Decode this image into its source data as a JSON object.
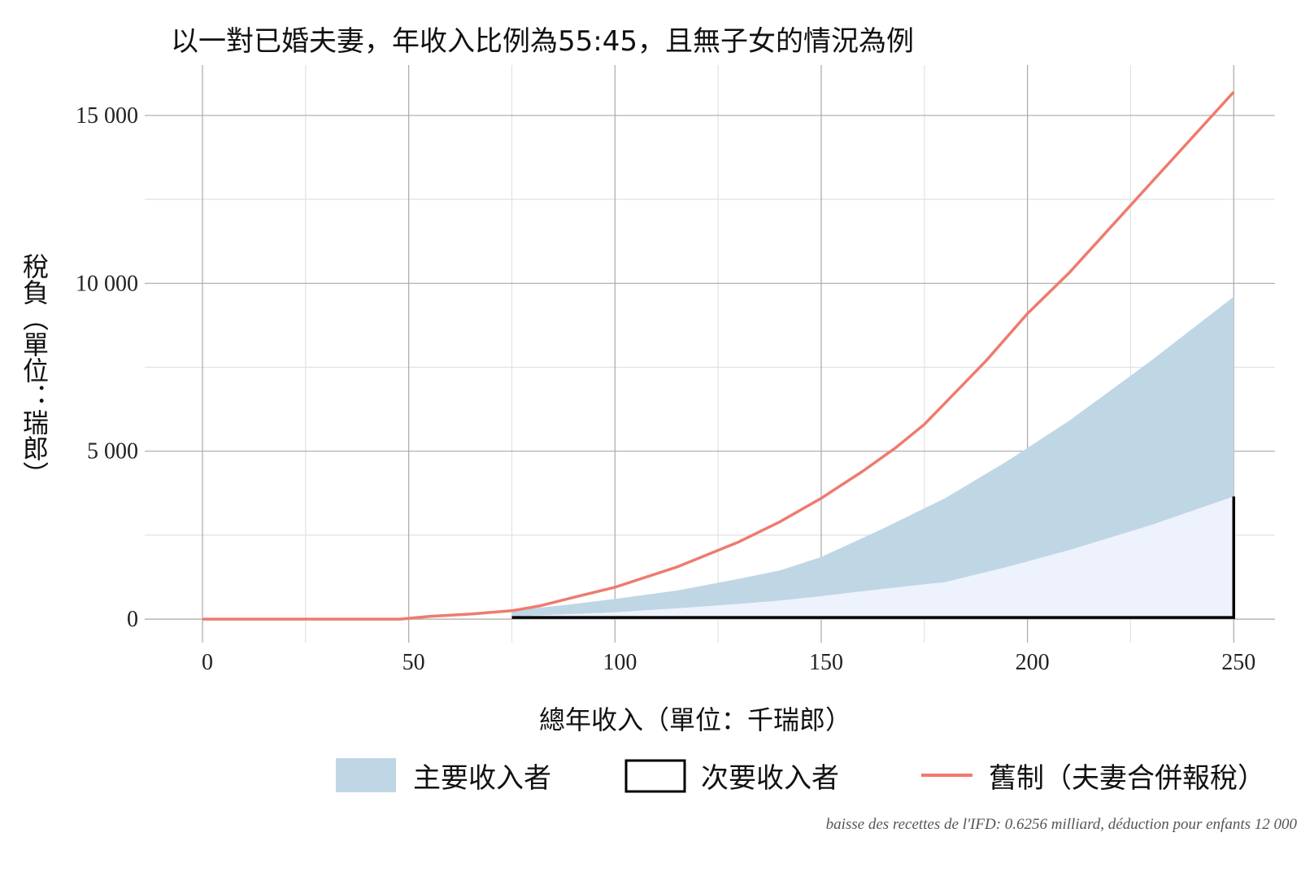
{
  "chart_data": {
    "type": "area",
    "title": "以一對已婚夫妻，年收入比例為55:45，且無子女的情況為例",
    "xlabel": "總年收入（單位：千瑞郎）",
    "ylabel": "稅負（單位：瑞郎）",
    "xlim": [
      -14,
      260
    ],
    "ylim": [
      -700,
      16500
    ],
    "x_ticks": [
      0,
      50,
      100,
      150,
      200,
      250
    ],
    "x_tick_labels": [
      "0",
      "50",
      "100",
      "150",
      "200",
      "250"
    ],
    "y_ticks": [
      0,
      5000,
      10000,
      15000
    ],
    "y_tick_labels": [
      "0",
      "5 000",
      "10 000",
      "15 000"
    ],
    "grid": true,
    "legend_position": "bottom",
    "caption": "baisse des recettes de l'IFD: 0.6256 milliard, déduction pour enfants 12 000",
    "colors": {
      "primary_fill": "#bfd6e5",
      "secondary_fill": "#edf2fc",
      "secondary_outline": "#000000",
      "old_line": "#ee7b6e",
      "grid_major": "#a9a9a9",
      "grid_minor": "#e2e2e2"
    },
    "series": [
      {
        "name": "主要收入者",
        "kind": "band",
        "x": [
          75,
          90,
          100,
          115,
          130,
          140,
          150,
          165,
          180,
          195,
          210,
          230,
          250
        ],
        "y": [
          250,
          450,
          600,
          850,
          1200,
          1450,
          1850,
          2700,
          3600,
          4700,
          5900,
          7700,
          9600
        ]
      },
      {
        "name": "次要收入者",
        "kind": "area-outline",
        "x": [
          75,
          90,
          100,
          115,
          130,
          140,
          150,
          165,
          180,
          195,
          210,
          230,
          250
        ],
        "y": [
          80,
          150,
          200,
          320,
          450,
          550,
          680,
          900,
          1100,
          1550,
          2050,
          2800,
          3650
        ]
      },
      {
        "name": "舊制（夫妻合併報稅）",
        "kind": "line",
        "x": [
          0,
          48,
          55,
          65,
          75,
          82,
          90,
          100,
          115,
          130,
          140,
          150,
          160,
          168,
          175,
          190,
          200,
          210,
          230,
          250
        ],
        "y": [
          0,
          0,
          80,
          150,
          250,
          400,
          650,
          950,
          1550,
          2300,
          2900,
          3600,
          4400,
          5100,
          5800,
          7700,
          9100,
          10300,
          13000,
          15700
        ]
      }
    ]
  }
}
